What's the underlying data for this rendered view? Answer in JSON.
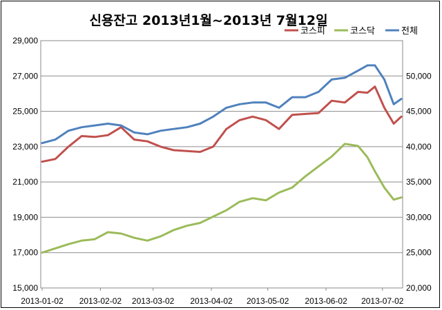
{
  "chart_data": {
    "type": "line",
    "title": "신용잔고  2013년1월~2013년 7월12일",
    "xlabel": "",
    "ylabel": "",
    "x_ticks": [
      "2013-01-02",
      "2013-02-02",
      "2013-03-02",
      "2013-04-02",
      "2013-05-02",
      "2013-06-02",
      "2013-07-02"
    ],
    "y_left": {
      "min": 15000,
      "max": 29000,
      "ticks": [
        "15,000",
        "17,000",
        "19,000",
        "21,000",
        "23,000",
        "25,000",
        "27,000",
        "29,000"
      ]
    },
    "y_right": {
      "min": 20000,
      "max": 55000,
      "ticks": [
        "20,000",
        "25,000",
        "30,000",
        "35,000",
        "40,000",
        "45,000",
        "50,000"
      ]
    },
    "grid": true,
    "legend_position": "top-right",
    "x": [
      "2013-01-02",
      "2013-01-09",
      "2013-01-16",
      "2013-01-23",
      "2013-01-30",
      "2013-02-06",
      "2013-02-13",
      "2013-02-20",
      "2013-02-27",
      "2013-03-06",
      "2013-03-13",
      "2013-03-20",
      "2013-03-27",
      "2013-04-03",
      "2013-04-10",
      "2013-04-17",
      "2013-04-24",
      "2013-05-01",
      "2013-05-08",
      "2013-05-15",
      "2013-05-22",
      "2013-05-29",
      "2013-06-05",
      "2013-06-12",
      "2013-06-19",
      "2013-06-24",
      "2013-06-28",
      "2013-07-03",
      "2013-07-08",
      "2013-07-12"
    ],
    "series": [
      {
        "name": "코스피",
        "axis": "left",
        "color": "#C0504D",
        "values": [
          22150,
          22300,
          23000,
          23600,
          23550,
          23650,
          24100,
          23400,
          23300,
          23000,
          22800,
          22750,
          22700,
          23000,
          24000,
          24500,
          24700,
          24500,
          24000,
          24800,
          24850,
          24900,
          25600,
          25500,
          26100,
          26050,
          26400,
          25200,
          24300,
          24700
        ]
      },
      {
        "name": "코스닥",
        "axis": "right",
        "color": "#9BBB59",
        "values": [
          25000,
          25600,
          26200,
          26700,
          26900,
          27900,
          27700,
          27100,
          26700,
          27300,
          28200,
          28800,
          29200,
          30100,
          31000,
          32200,
          32700,
          32400,
          33500,
          34200,
          35800,
          37200,
          38600,
          40400,
          40100,
          38500,
          36500,
          34200,
          32500,
          32800
        ]
      },
      {
        "name": "전체",
        "axis": "left",
        "color": "#4F81BD",
        "values": [
          23200,
          23400,
          23900,
          24100,
          24200,
          24300,
          24200,
          23800,
          23700,
          23900,
          24000,
          24100,
          24300,
          24700,
          25200,
          25400,
          25500,
          25500,
          25200,
          25800,
          25800,
          26100,
          26800,
          26900,
          27300,
          27600,
          27600,
          26800,
          25400,
          25700
        ]
      }
    ]
  }
}
